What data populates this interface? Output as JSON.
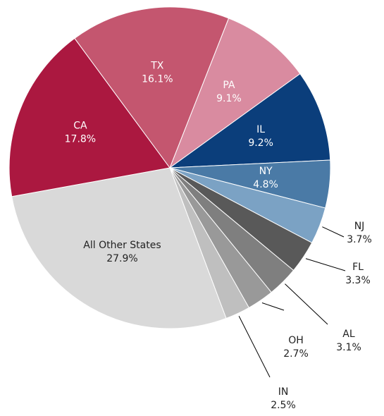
{
  "chart_data": {
    "type": "pie",
    "categories": [
      "PA",
      "IL",
      "NY",
      "NJ",
      "FL",
      "AL",
      "OH",
      "IN",
      "All Other States",
      "CA",
      "TX"
    ],
    "values": [
      9.1,
      9.2,
      4.8,
      3.7,
      3.3,
      3.1,
      2.7,
      2.5,
      27.9,
      17.8,
      16.1
    ],
    "value_labels": [
      "9.1%",
      "9.2%",
      "4.8%",
      "3.7%",
      "3.3%",
      "3.1%",
      "2.7%",
      "2.5%",
      "27.9%",
      "17.8%",
      "16.1%"
    ],
    "colors": [
      "#d98ba0",
      "#0b3e7b",
      "#4a7aa6",
      "#7ba2c4",
      "#595959",
      "#7f7f7f",
      "#999999",
      "#bfbfbf",
      "#d9d9d9",
      "#ab1840",
      "#c4566f"
    ]
  }
}
